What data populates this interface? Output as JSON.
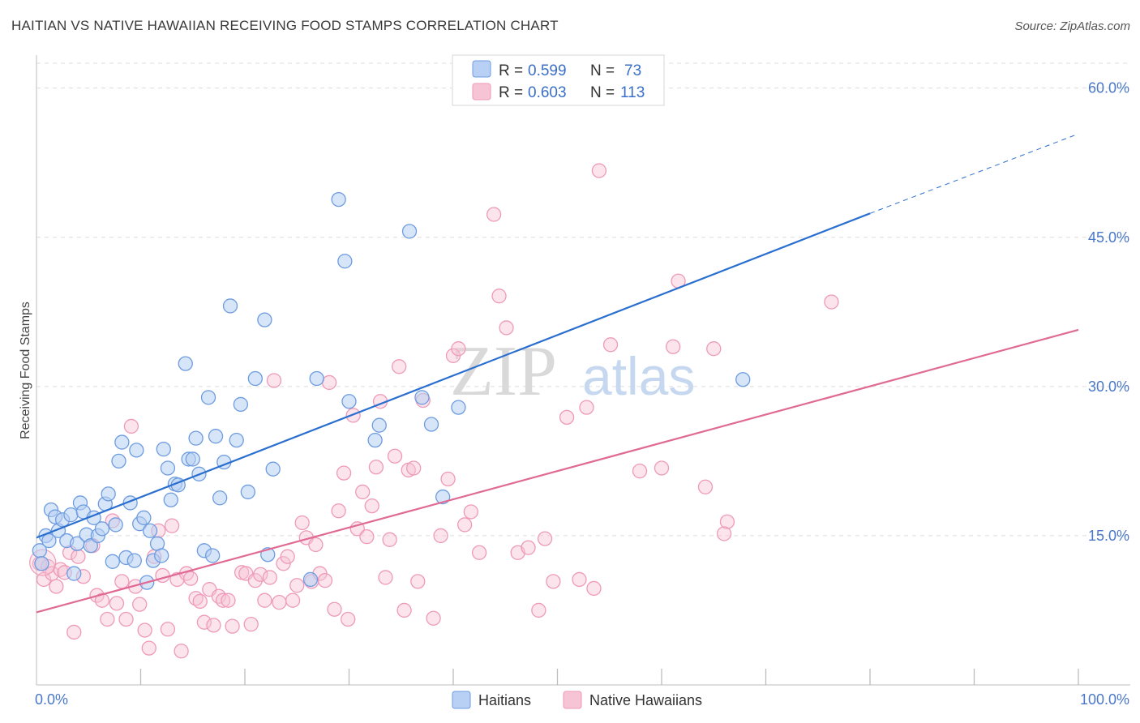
{
  "title": "HAITIAN VS NATIVE HAWAIIAN RECEIVING FOOD STAMPS CORRELATION CHART",
  "source": "Source: ZipAtlas.com",
  "watermark": {
    "zip": "ZIP",
    "atlas": "atlas"
  },
  "colors": {
    "blue": "#2a6fd0",
    "blue_fill": "#b7d0f3",
    "blue_stroke": "#6d9ce0",
    "pink": "#e06a93",
    "pink_fill": "#f7c4d5",
    "pink_stroke": "#ee9ab8",
    "grid": "#dcdcdc",
    "tick": "#4a78c8"
  },
  "legend": {
    "entries": [
      {
        "r_label": "R =",
        "r_value": "0.599",
        "n_label": "N =",
        "n_value": "73"
      },
      {
        "r_label": "R =",
        "r_value": "0.603",
        "n_label": "N =",
        "n_value": "113"
      }
    ]
  },
  "chart_data": {
    "type": "scatter",
    "title": "HAITIAN VS NATIVE HAWAIIAN RECEIVING FOOD STAMPS CORRELATION CHART",
    "xlabel": "",
    "ylabel": "Receiving Food Stamps",
    "xlim": [
      0,
      100
    ],
    "ylim": [
      0,
      62.5
    ],
    "x_tick_labels": [
      "0.0%",
      "100.0%"
    ],
    "y_ticks": [
      15,
      30,
      45,
      60
    ],
    "y_tick_labels": [
      "15.0%",
      "30.0%",
      "45.0%",
      "60.0%"
    ],
    "grid": true,
    "legend_position": "top-center",
    "series": [
      {
        "name": "Haitians",
        "trend": {
          "x0": 0,
          "y0": 14.8,
          "x1": 80,
          "y1": 47.4,
          "dashed_to_x": 100,
          "dashed_to_y": 55.4
        },
        "points": [
          [
            0.3,
            13.5
          ],
          [
            0.5,
            12.2
          ],
          [
            0.9,
            15.0
          ],
          [
            1.2,
            14.5
          ],
          [
            1.4,
            17.6
          ],
          [
            1.8,
            16.9
          ],
          [
            2.1,
            15.5
          ],
          [
            2.5,
            16.6
          ],
          [
            2.9,
            14.5
          ],
          [
            3.3,
            17.1
          ],
          [
            3.6,
            11.2
          ],
          [
            3.9,
            14.2
          ],
          [
            4.2,
            18.3
          ],
          [
            4.5,
            17.4
          ],
          [
            4.8,
            15.1
          ],
          [
            5.2,
            14.0
          ],
          [
            5.5,
            16.8
          ],
          [
            5.9,
            15.0
          ],
          [
            6.3,
            15.7
          ],
          [
            6.6,
            18.2
          ],
          [
            6.9,
            19.2
          ],
          [
            7.3,
            12.4
          ],
          [
            7.6,
            16.1
          ],
          [
            7.9,
            22.5
          ],
          [
            8.2,
            24.4
          ],
          [
            8.6,
            12.8
          ],
          [
            9.0,
            18.3
          ],
          [
            9.4,
            12.5
          ],
          [
            9.6,
            23.6
          ],
          [
            9.9,
            16.2
          ],
          [
            10.3,
            16.8
          ],
          [
            10.6,
            10.3
          ],
          [
            10.9,
            15.5
          ],
          [
            11.2,
            12.5
          ],
          [
            11.6,
            14.2
          ],
          [
            12.0,
            13.0
          ],
          [
            12.2,
            23.7
          ],
          [
            12.6,
            21.8
          ],
          [
            12.9,
            18.6
          ],
          [
            13.3,
            20.2
          ],
          [
            13.6,
            20.1
          ],
          [
            14.3,
            32.3
          ],
          [
            14.6,
            22.7
          ],
          [
            15.0,
            22.7
          ],
          [
            15.3,
            24.8
          ],
          [
            15.6,
            21.2
          ],
          [
            16.1,
            13.5
          ],
          [
            16.5,
            28.9
          ],
          [
            16.9,
            13.0
          ],
          [
            17.2,
            25.0
          ],
          [
            17.6,
            18.8
          ],
          [
            18.0,
            22.4
          ],
          [
            18.6,
            38.1
          ],
          [
            19.2,
            24.6
          ],
          [
            19.6,
            28.2
          ],
          [
            20.3,
            19.4
          ],
          [
            21.0,
            30.8
          ],
          [
            21.9,
            36.7
          ],
          [
            22.2,
            13.1
          ],
          [
            22.7,
            21.7
          ],
          [
            26.3,
            10.6
          ],
          [
            26.9,
            30.8
          ],
          [
            29.0,
            48.8
          ],
          [
            29.6,
            42.6
          ],
          [
            30.0,
            28.5
          ],
          [
            32.5,
            24.6
          ],
          [
            32.9,
            26.1
          ],
          [
            35.8,
            45.6
          ],
          [
            37.0,
            28.9
          ],
          [
            37.9,
            26.2
          ],
          [
            39.0,
            18.9
          ],
          [
            40.5,
            27.9
          ],
          [
            67.8,
            30.7
          ]
        ]
      },
      {
        "name": "Native Hawaiians",
        "trend": {
          "x0": 0,
          "y0": 7.3,
          "x1": 100,
          "y1": 35.7
        },
        "points": [
          [
            0.3,
            12.2
          ],
          [
            0.7,
            10.6
          ],
          [
            1.1,
            11.9
          ],
          [
            1.5,
            11.2
          ],
          [
            1.9,
            9.9
          ],
          [
            2.3,
            11.6
          ],
          [
            2.7,
            11.3
          ],
          [
            3.2,
            13.3
          ],
          [
            3.6,
            5.3
          ],
          [
            4.0,
            12.9
          ],
          [
            4.5,
            10.9
          ],
          [
            5.4,
            14.0
          ],
          [
            5.8,
            9.0
          ],
          [
            6.3,
            8.5
          ],
          [
            6.8,
            6.6
          ],
          [
            7.3,
            16.5
          ],
          [
            7.7,
            8.2
          ],
          [
            8.2,
            10.4
          ],
          [
            8.6,
            6.6
          ],
          [
            9.1,
            26.0
          ],
          [
            9.5,
            9.9
          ],
          [
            9.9,
            8.1
          ],
          [
            10.4,
            5.5
          ],
          [
            10.8,
            3.7
          ],
          [
            11.3,
            12.9
          ],
          [
            11.7,
            15.5
          ],
          [
            12.1,
            11.0
          ],
          [
            12.6,
            5.6
          ],
          [
            13.0,
            16.0
          ],
          [
            13.5,
            10.6
          ],
          [
            13.9,
            3.4
          ],
          [
            14.4,
            11.2
          ],
          [
            14.8,
            10.7
          ],
          [
            15.3,
            8.7
          ],
          [
            15.7,
            8.4
          ],
          [
            16.1,
            6.3
          ],
          [
            16.6,
            9.6
          ],
          [
            17.0,
            6.0
          ],
          [
            17.5,
            8.9
          ],
          [
            17.9,
            8.5
          ],
          [
            18.4,
            8.5
          ],
          [
            18.8,
            5.9
          ],
          [
            19.7,
            11.3
          ],
          [
            20.1,
            11.2
          ],
          [
            20.6,
            6.1
          ],
          [
            21.0,
            10.5
          ],
          [
            21.5,
            11.1
          ],
          [
            21.9,
            8.5
          ],
          [
            22.4,
            10.8
          ],
          [
            22.8,
            30.6
          ],
          [
            23.3,
            8.3
          ],
          [
            23.7,
            12.2
          ],
          [
            24.1,
            12.9
          ],
          [
            24.6,
            8.5
          ],
          [
            25.0,
            10.0
          ],
          [
            25.5,
            16.3
          ],
          [
            25.9,
            14.8
          ],
          [
            26.4,
            10.4
          ],
          [
            26.8,
            14.1
          ],
          [
            27.2,
            11.2
          ],
          [
            27.7,
            10.5
          ],
          [
            28.1,
            30.4
          ],
          [
            28.6,
            7.6
          ],
          [
            29.0,
            17.5
          ],
          [
            29.5,
            21.3
          ],
          [
            29.9,
            6.6
          ],
          [
            30.4,
            27.1
          ],
          [
            30.8,
            15.7
          ],
          [
            31.3,
            19.4
          ],
          [
            31.7,
            14.9
          ],
          [
            32.2,
            18.0
          ],
          [
            32.6,
            21.9
          ],
          [
            33.0,
            28.5
          ],
          [
            33.5,
            10.8
          ],
          [
            33.9,
            14.6
          ],
          [
            34.4,
            23.0
          ],
          [
            34.8,
            32.0
          ],
          [
            35.3,
            7.5
          ],
          [
            35.7,
            21.6
          ],
          [
            36.2,
            21.8
          ],
          [
            36.6,
            10.4
          ],
          [
            37.1,
            28.6
          ],
          [
            38.1,
            6.7
          ],
          [
            38.8,
            15.0
          ],
          [
            39.5,
            20.7
          ],
          [
            40.0,
            33.1
          ],
          [
            40.5,
            33.8
          ],
          [
            41.1,
            16.1
          ],
          [
            41.7,
            17.4
          ],
          [
            42.5,
            13.3
          ],
          [
            43.9,
            47.3
          ],
          [
            44.4,
            39.1
          ],
          [
            45.1,
            35.9
          ],
          [
            46.2,
            13.3
          ],
          [
            47.2,
            13.8
          ],
          [
            48.2,
            7.5
          ],
          [
            48.8,
            14.7
          ],
          [
            49.6,
            10.4
          ],
          [
            50.9,
            26.9
          ],
          [
            52.1,
            10.6
          ],
          [
            52.8,
            27.9
          ],
          [
            53.5,
            9.7
          ],
          [
            54.0,
            51.7
          ],
          [
            55.1,
            34.2
          ],
          [
            57.9,
            21.5
          ],
          [
            60.0,
            21.8
          ],
          [
            61.1,
            34.0
          ],
          [
            61.6,
            40.6
          ],
          [
            64.2,
            19.9
          ],
          [
            65.0,
            33.8
          ],
          [
            66.3,
            16.4
          ],
          [
            76.3,
            38.5
          ],
          [
            66.0,
            15.2
          ]
        ]
      }
    ]
  }
}
